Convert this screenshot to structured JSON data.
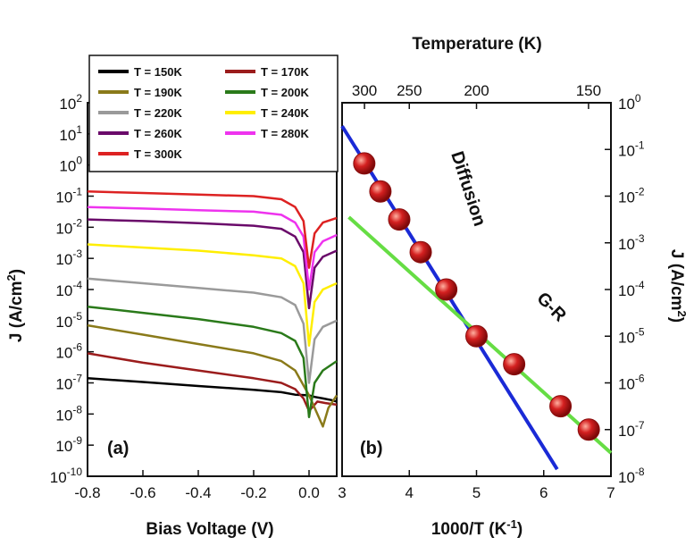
{
  "chart_data": [
    {
      "type": "line",
      "panel": "(a)",
      "xlabel": "Bias Voltage (V)",
      "ylabel": "J (A/cm2)",
      "xlim": [
        -0.8,
        0.1
      ],
      "ylim_log10": [
        -10,
        2
      ],
      "yscale": "log",
      "xticks": [
        "-0.8",
        "-0.6",
        "-0.4",
        "-0.2",
        "0.0"
      ],
      "legend_placement": "top-left",
      "series": [
        {
          "name": "T = 150K",
          "color": "#000000",
          "x": [
            -0.8,
            -0.6,
            -0.4,
            -0.2,
            -0.1,
            -0.05,
            0.0,
            0.02,
            0.05,
            0.08,
            0.1
          ],
          "log10_J": [
            -6.85,
            -6.97,
            -7.1,
            -7.22,
            -7.3,
            -7.38,
            -7.4,
            -7.45,
            -7.5,
            -7.55,
            -7.6
          ]
        },
        {
          "name": "T = 170K",
          "color": "#9b1c1c",
          "x": [
            -0.8,
            -0.6,
            -0.4,
            -0.2,
            -0.1,
            -0.05,
            -0.02,
            0.0,
            0.03,
            0.06,
            0.1
          ],
          "log10_J": [
            -6.05,
            -6.35,
            -6.6,
            -6.85,
            -7.0,
            -7.2,
            -7.5,
            -7.9,
            -7.6,
            -7.65,
            -7.7
          ]
        },
        {
          "name": "T = 190K",
          "color": "#8a7a1a",
          "x": [
            -0.8,
            -0.6,
            -0.4,
            -0.2,
            -0.1,
            -0.05,
            0.0,
            0.03,
            0.05,
            0.07,
            0.1
          ],
          "log10_J": [
            -5.15,
            -5.45,
            -5.75,
            -6.05,
            -6.3,
            -6.6,
            -7.4,
            -8.0,
            -8.4,
            -7.8,
            -7.4
          ]
        },
        {
          "name": "T = 200K",
          "color": "#2a7a1a",
          "x": [
            -0.8,
            -0.6,
            -0.4,
            -0.2,
            -0.1,
            -0.05,
            -0.02,
            0.0,
            0.02,
            0.05,
            0.1
          ],
          "log10_J": [
            -4.55,
            -4.75,
            -4.95,
            -5.2,
            -5.4,
            -5.65,
            -6.2,
            -8.1,
            -7.0,
            -6.6,
            -6.3
          ]
        },
        {
          "name": "T = 220K",
          "color": "#9a9a9a",
          "x": [
            -0.8,
            -0.6,
            -0.4,
            -0.2,
            -0.1,
            -0.05,
            -0.02,
            0.0,
            0.02,
            0.05,
            0.1
          ],
          "log10_J": [
            -3.65,
            -3.8,
            -3.95,
            -4.1,
            -4.25,
            -4.5,
            -5.1,
            -7.0,
            -5.6,
            -5.2,
            -5.0
          ]
        },
        {
          "name": "T = 240K",
          "color": "#ffee00",
          "x": [
            -0.8,
            -0.6,
            -0.4,
            -0.2,
            -0.1,
            -0.05,
            -0.02,
            0.0,
            0.02,
            0.05,
            0.1
          ],
          "log10_J": [
            -2.55,
            -2.65,
            -2.75,
            -2.9,
            -3.0,
            -3.25,
            -3.8,
            -5.8,
            -4.4,
            -4.0,
            -3.8
          ]
        },
        {
          "name": "T = 260K",
          "color": "#6a0a6a",
          "x": [
            -0.8,
            -0.6,
            -0.4,
            -0.2,
            -0.1,
            -0.05,
            -0.02,
            0.0,
            0.02,
            0.05,
            0.1
          ],
          "log10_J": [
            -1.75,
            -1.8,
            -1.87,
            -1.95,
            -2.05,
            -2.3,
            -2.8,
            -4.6,
            -3.3,
            -2.95,
            -2.75
          ]
        },
        {
          "name": "T = 280K",
          "color": "#ee33ee",
          "x": [
            -0.8,
            -0.6,
            -0.4,
            -0.2,
            -0.1,
            -0.05,
            -0.02,
            0.0,
            0.02,
            0.05,
            0.1
          ],
          "log10_J": [
            -1.35,
            -1.4,
            -1.45,
            -1.5,
            -1.6,
            -1.85,
            -2.3,
            -4.0,
            -2.8,
            -2.45,
            -2.25
          ]
        },
        {
          "name": "T = 300K",
          "color": "#dd2222",
          "x": [
            -0.8,
            -0.6,
            -0.4,
            -0.2,
            -0.1,
            -0.05,
            -0.02,
            0.0,
            0.02,
            0.05,
            0.1
          ],
          "log10_J": [
            -0.85,
            -0.9,
            -0.95,
            -1.0,
            -1.1,
            -1.35,
            -1.8,
            -3.3,
            -2.2,
            -1.85,
            -1.7
          ]
        }
      ]
    },
    {
      "type": "scatter",
      "panel": "(b)",
      "xlabel": "1000/T (K-1)",
      "top_xlabel": "Temperature (K)",
      "ylabel": "J (A/cm2)",
      "xlim": [
        3,
        7
      ],
      "ylim_log10": [
        -8,
        0
      ],
      "yscale": "log",
      "xticks": [
        "3",
        "4",
        "5",
        "6",
        "7"
      ],
      "top_ticks": [
        "300",
        "250",
        "200",
        "150"
      ],
      "top_tick_T": [
        300,
        250,
        200,
        150
      ],
      "points": {
        "color": "#d42020",
        "x": [
          3.33,
          3.57,
          3.85,
          4.17,
          4.55,
          5.0,
          5.56,
          6.25,
          6.67
        ],
        "log10_J": [
          -1.3,
          -1.9,
          -2.5,
          -3.2,
          -4.0,
          -5.0,
          -5.6,
          -6.5,
          -7.0
        ]
      },
      "fits": [
        {
          "name": "Diffusion",
          "color": "#1a2ad6",
          "x": [
            3.0,
            6.2
          ],
          "log10_J": [
            -0.5,
            -7.85
          ]
        },
        {
          "name": "G-R",
          "color": "#66dd44",
          "x": [
            3.1,
            7.0
          ],
          "log10_J": [
            -2.45,
            -7.5
          ]
        }
      ],
      "annotations": [
        "Diffusion",
        "G-R"
      ]
    }
  ]
}
